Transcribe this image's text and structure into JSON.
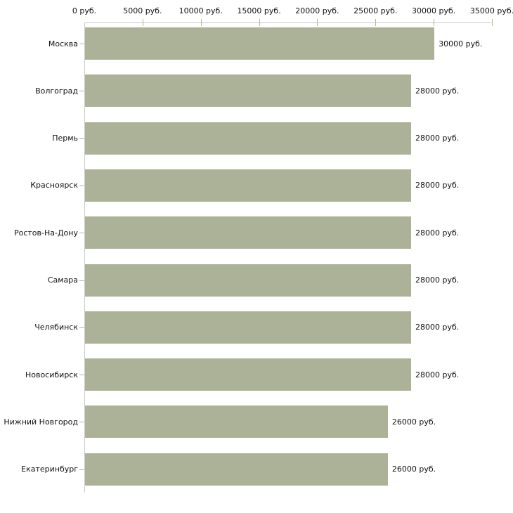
{
  "chart_data": {
    "type": "bar",
    "orientation": "horizontal",
    "title": "",
    "categories": [
      "Москва",
      "Волгоград",
      "Пермь",
      "Красноярск",
      "Ростов-На-Дону",
      "Самара",
      "Челябинск",
      "Новосибирск",
      "Нижний Новгород",
      "Екатеринбург"
    ],
    "values": [
      30000,
      28000,
      28000,
      28000,
      28000,
      28000,
      28000,
      28000,
      26000,
      26000
    ],
    "value_labels": [
      "30000 руб.",
      "28000 руб.",
      "28000 руб.",
      "28000 руб.",
      "28000 руб.",
      "28000 руб.",
      "28000 руб.",
      "28000 руб.",
      "26000 руб.",
      "26000 руб."
    ],
    "x_axis": {
      "min": 0,
      "max": 35000,
      "position": "top",
      "ticks": [
        0,
        5000,
        10000,
        15000,
        20000,
        25000,
        30000,
        35000
      ],
      "tick_labels": [
        "0 руб.",
        "5000 руб.",
        "10000 руб.",
        "15000 руб.",
        "20000 руб.",
        "25000 руб.",
        "30000 руб.",
        "35000 руб."
      ]
    },
    "grid": false,
    "legend": false,
    "colors": {
      "bar": "#acb297",
      "axis_line": "#c9c9c9",
      "tick_mark": "#b9b97f",
      "text": "#111111",
      "background": "#ffffff"
    }
  }
}
